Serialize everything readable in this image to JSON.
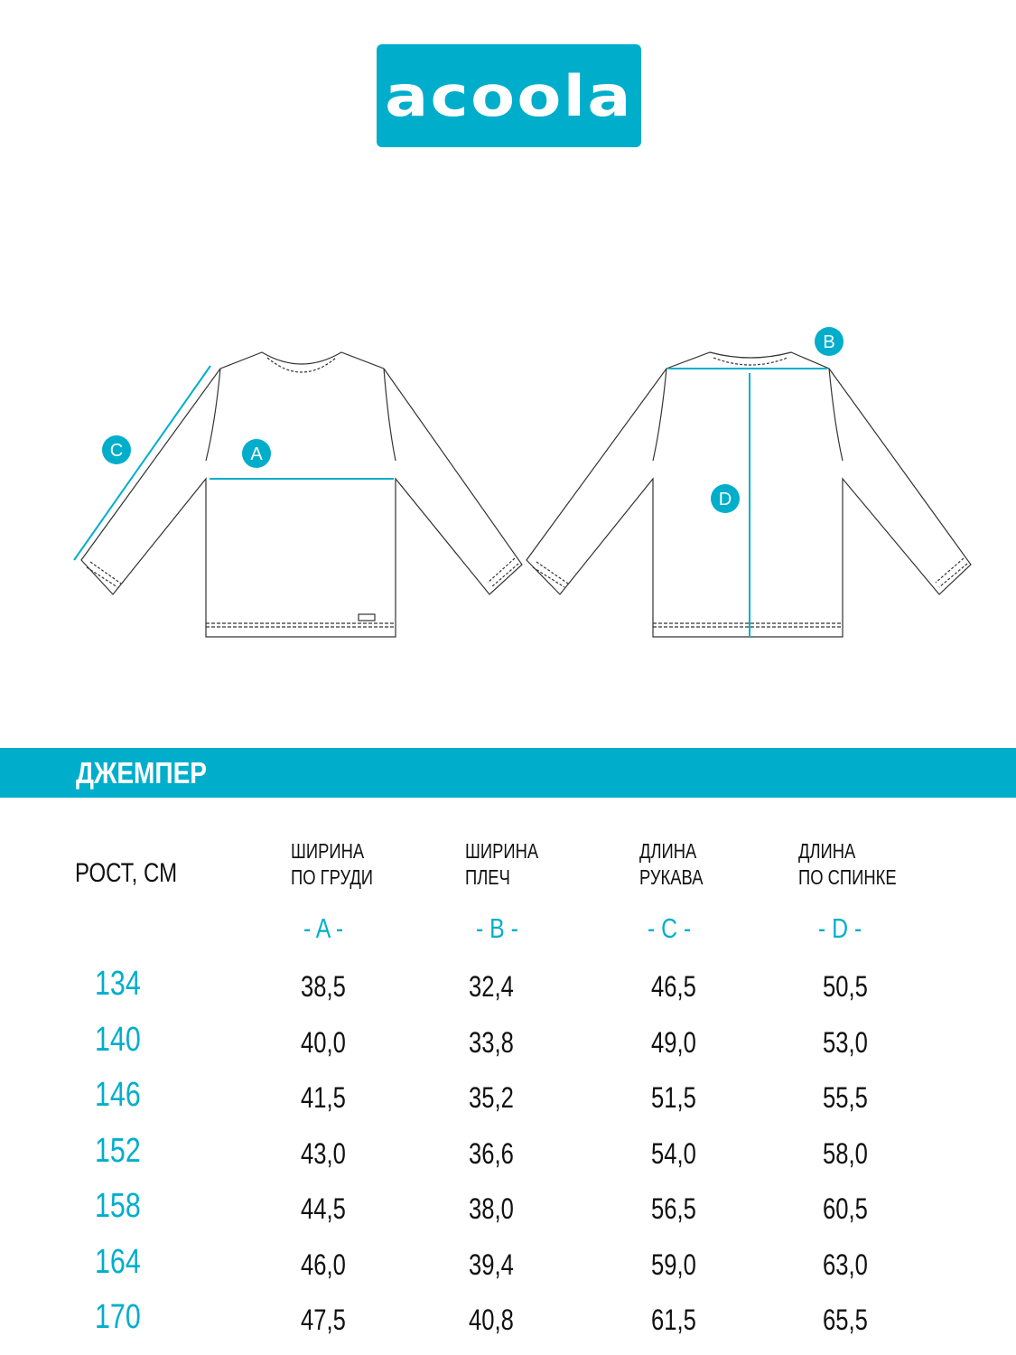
{
  "brand": {
    "logo": "acoola",
    "color": "#00aecb"
  },
  "diagram": {
    "labels": [
      "A",
      "B",
      "C",
      "D"
    ]
  },
  "section_title": "ДЖЕМПЕР",
  "table": {
    "columns": [
      {
        "title": "РОСТ, СМ"
      },
      {
        "line1": "ШИРИНА",
        "line2": "ПО ГРУДИ",
        "letter": "- A -"
      },
      {
        "line1": "ШИРИНА",
        "line2": "ПЛЕЧ",
        "letter": "- B -"
      },
      {
        "line1": "ДЛИНА",
        "line2": "РУКАВА",
        "letter": "- C -"
      },
      {
        "line1": "ДЛИНА",
        "line2": "ПО СПИНКЕ",
        "letter": "- D -"
      }
    ],
    "rows": [
      [
        "134",
        "38,5",
        "32,4",
        "46,5",
        "50,5"
      ],
      [
        "140",
        "40,0",
        "33,8",
        "49,0",
        "53,0"
      ],
      [
        "146",
        "41,5",
        "35,2",
        "51,5",
        "55,5"
      ],
      [
        "152",
        "43,0",
        "36,6",
        "54,0",
        "58,0"
      ],
      [
        "158",
        "44,5",
        "38,0",
        "56,5",
        "60,5"
      ],
      [
        "164",
        "46,0",
        "39,4",
        "59,0",
        "63,0"
      ],
      [
        "170",
        "47,5",
        "40,8",
        "61,5",
        "65,5"
      ]
    ]
  }
}
